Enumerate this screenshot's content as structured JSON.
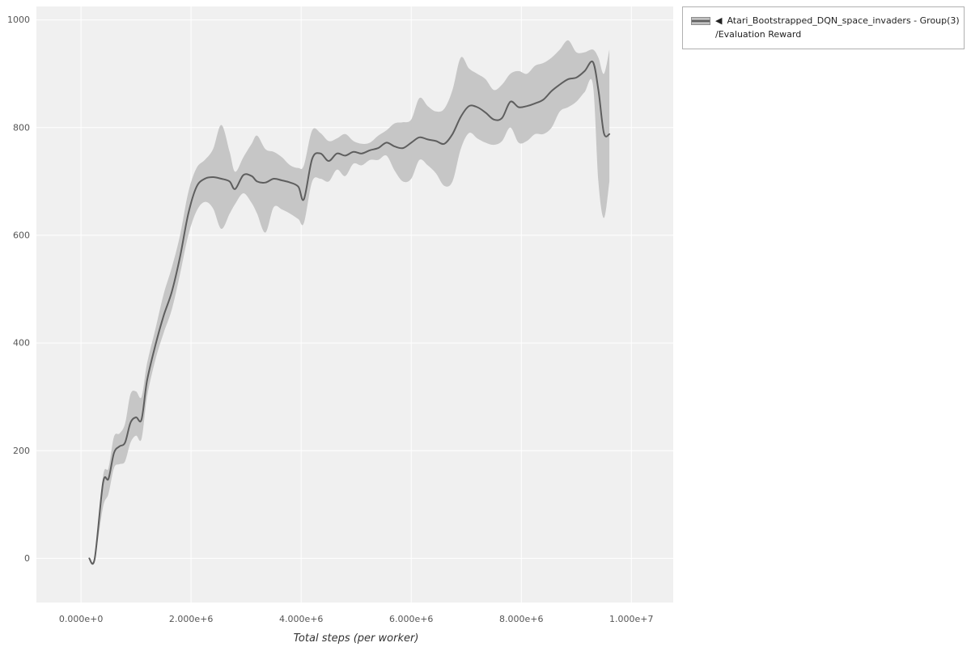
{
  "legend": {
    "toggle_icon": "◀",
    "series_name": "Atari_Bootstrapped_DQN_space_invaders - Group(3)",
    "metric_name": "/Evaluation Reward"
  },
  "chart_data": {
    "type": "line",
    "title": "",
    "xlabel": "Total steps (per worker)",
    "ylabel": "",
    "legend_position": "top-right-outside",
    "grid": true,
    "x_unit": 1000000,
    "xlim": [
      -0.81,
      10.76
    ],
    "ylim": [
      -82,
      1025
    ],
    "x_tick_values": [
      0,
      2,
      4,
      6,
      8,
      10
    ],
    "x_tick_labels": [
      "0.000e+0",
      "2.000e+6",
      "4.000e+6",
      "6.000e+6",
      "8.000e+6",
      "1.000e+7"
    ],
    "y_tick_values": [
      0,
      200,
      400,
      600,
      800,
      1000
    ],
    "y_tick_labels": [
      "0",
      "200",
      "400",
      "600",
      "800",
      "1000"
    ],
    "colors": {
      "line": "#5e5e5e",
      "band": "#c6c6c6",
      "plot_bg": "#f0f0f0",
      "grid": "#ffffff",
      "tick_text": "#555555"
    },
    "series": [
      {
        "name": "Atari_Bootstrapped_DQN_space_invaders - Group(3)/Evaluation Reward",
        "x": [
          0.15,
          0.25,
          0.4,
          0.5,
          0.6,
          0.7,
          0.8,
          0.9,
          1.0,
          1.1,
          1.2,
          1.35,
          1.5,
          1.65,
          1.8,
          1.95,
          2.1,
          2.25,
          2.4,
          2.55,
          2.7,
          2.8,
          2.95,
          3.1,
          3.2,
          3.35,
          3.5,
          3.65,
          3.8,
          3.95,
          4.05,
          4.2,
          4.35,
          4.5,
          4.65,
          4.8,
          4.95,
          5.1,
          5.25,
          5.4,
          5.55,
          5.7,
          5.85,
          6.0,
          6.15,
          6.3,
          6.45,
          6.6,
          6.75,
          6.9,
          7.05,
          7.2,
          7.35,
          7.5,
          7.65,
          7.8,
          7.95,
          8.1,
          8.25,
          8.4,
          8.55,
          8.7,
          8.85,
          9.0,
          9.15,
          9.3,
          9.4,
          9.5,
          9.6
        ],
        "mean": [
          0,
          0,
          140,
          148,
          196,
          208,
          215,
          252,
          262,
          258,
          330,
          395,
          450,
          495,
          560,
          640,
          690,
          705,
          708,
          705,
          700,
          686,
          712,
          710,
          700,
          698,
          705,
          702,
          698,
          690,
          667,
          742,
          752,
          738,
          752,
          748,
          755,
          752,
          758,
          762,
          772,
          765,
          762,
          772,
          782,
          778,
          775,
          770,
          788,
          820,
          840,
          838,
          828,
          815,
          818,
          848,
          838,
          840,
          845,
          852,
          868,
          880,
          890,
          893,
          905,
          922,
          870,
          790,
          788
        ],
        "lower": [
          0,
          0,
          95,
          120,
          168,
          175,
          180,
          215,
          228,
          222,
          300,
          368,
          418,
          462,
          528,
          600,
          645,
          662,
          650,
          612,
          640,
          658,
          678,
          660,
          640,
          605,
          652,
          648,
          640,
          630,
          623,
          700,
          705,
          700,
          722,
          710,
          733,
          730,
          740,
          740,
          748,
          720,
          700,
          705,
          740,
          730,
          715,
          692,
          700,
          760,
          790,
          780,
          772,
          768,
          775,
          800,
          772,
          775,
          788,
          788,
          800,
          830,
          838,
          848,
          866,
          880,
          700,
          632,
          700
        ],
        "upper": [
          0,
          0,
          152,
          168,
          226,
          232,
          250,
          305,
          310,
          300,
          362,
          425,
          490,
          540,
          600,
          680,
          725,
          740,
          760,
          805,
          755,
          718,
          745,
          770,
          785,
          760,
          755,
          745,
          730,
          725,
          730,
          795,
          790,
          775,
          780,
          788,
          775,
          770,
          772,
          785,
          795,
          808,
          810,
          815,
          855,
          840,
          830,
          835,
          870,
          930,
          910,
          900,
          890,
          870,
          880,
          900,
          905,
          900,
          915,
          920,
          930,
          945,
          962,
          940,
          940,
          945,
          930,
          900,
          945
        ]
      }
    ]
  }
}
